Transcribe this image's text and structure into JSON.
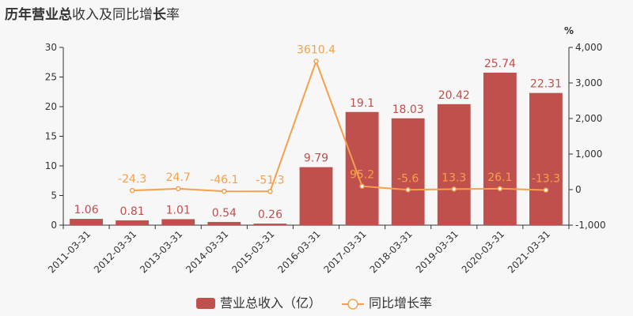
{
  "title": {
    "parts": [
      {
        "text": "历年",
        "bold": true
      },
      {
        "text": "营业总",
        "bold": true
      },
      {
        "text": "收入及同比增",
        "bold": false
      },
      {
        "text": "长",
        "bold": true
      },
      {
        "text": "率",
        "bold": false
      }
    ]
  },
  "chart_data": {
    "type": "bar",
    "categories": [
      "2011-03-31",
      "2012-03-31",
      "2013-03-31",
      "2014-03-31",
      "2015-03-31",
      "2016-03-31",
      "2017-03-31",
      "2018-03-31",
      "2019-03-31",
      "2020-03-31",
      "2021-03-31"
    ],
    "series": [
      {
        "name": "营业总收入（亿）",
        "type": "bar",
        "axis": "left",
        "color": "#c0504d",
        "values": [
          1.06,
          0.81,
          1.01,
          0.54,
          0.26,
          9.79,
          19.1,
          18.03,
          20.42,
          25.74,
          22.31
        ],
        "labels": [
          "1.06",
          "0.81",
          "1.01",
          "0.54",
          "0.26",
          "9.79",
          "19.1",
          "18.03",
          "20.42",
          "25.74",
          "22.31"
        ]
      },
      {
        "name": "同比增长率",
        "type": "line",
        "axis": "right",
        "color": "#f5a04b",
        "values": [
          null,
          -24.3,
          24.7,
          -46.1,
          -51.3,
          3610.4,
          95.2,
          -5.6,
          13.3,
          26.1,
          -13.3
        ],
        "labels": [
          "",
          "-24.3",
          "24.7",
          "-46.1",
          "-51.3",
          "3610.4",
          "95.2",
          "-5.6",
          "13.3",
          "26.1",
          "-13.3"
        ]
      }
    ],
    "left_axis": {
      "ylim": [
        0,
        30
      ],
      "ticks": [
        "0",
        "5",
        "10",
        "15",
        "20",
        "25",
        "30"
      ]
    },
    "right_axis": {
      "ylim": [
        -1000,
        4000
      ],
      "unit": "%",
      "ticks": [
        "-1,000",
        "0",
        "1,000",
        "2,000",
        "3,000",
        "4,000"
      ]
    },
    "grid": false,
    "legend_position": "bottom"
  }
}
